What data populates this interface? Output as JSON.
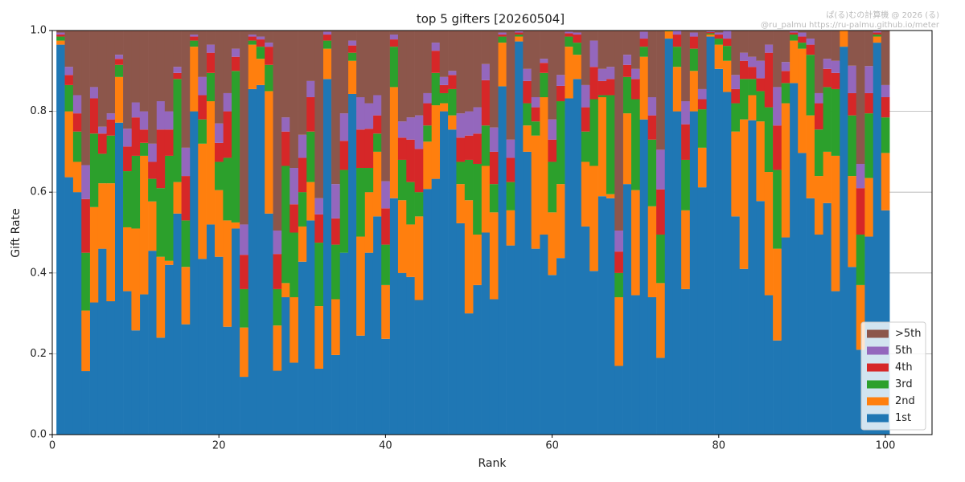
{
  "chart_data": {
    "type": "stacked_bar",
    "title": "top 5 gifters [20260504]",
    "watermark": [
      "ぱ(る)むの計算機 @ 2026 (る)",
      "@ru_palmu  https://ru-palmu.github.io/meter"
    ],
    "xlabel": "Rank",
    "ylabel": "Gift Rate",
    "x": [
      1,
      2,
      3,
      4,
      5,
      6,
      7,
      8,
      9,
      10,
      11,
      12,
      13,
      14,
      15,
      16,
      17,
      18,
      19,
      20,
      21,
      22,
      23,
      24,
      25,
      26,
      27,
      28,
      29,
      30,
      31,
      32,
      33,
      34,
      35,
      36,
      37,
      38,
      39,
      40,
      41,
      42,
      43,
      44,
      45,
      46,
      47,
      48,
      49,
      50,
      51,
      52,
      53,
      54,
      55,
      56,
      57,
      58,
      59,
      60,
      61,
      62,
      63,
      64,
      65,
      66,
      67,
      68,
      69,
      70,
      71,
      72,
      73,
      74,
      75,
      76,
      77,
      78,
      79,
      80,
      81,
      82,
      83,
      84,
      85,
      86,
      87,
      88,
      89,
      90,
      91,
      92,
      93,
      94,
      95,
      96,
      97,
      98,
      99,
      100
    ],
    "series": [
      {
        "name": "1st",
        "color": "#1f77b4",
        "values": [
          0.965,
          0.637,
          0.6,
          0.157,
          0.327,
          0.46,
          0.33,
          0.772,
          0.355,
          0.258,
          0.347,
          0.455,
          0.24,
          0.42,
          0.547,
          0.273,
          0.8,
          0.435,
          0.52,
          0.44,
          0.267,
          0.51,
          0.143,
          0.855,
          0.865,
          0.547,
          0.158,
          0.34,
          0.178,
          0.428,
          0.53,
          0.163,
          0.88,
          0.197,
          0.45,
          0.843,
          0.245,
          0.45,
          0.54,
          0.237,
          0.585,
          0.4,
          0.39,
          0.333,
          0.608,
          0.633,
          0.8,
          0.755,
          0.523,
          0.3,
          0.37,
          0.5,
          0.335,
          0.862,
          0.468,
          0.973,
          0.7,
          0.46,
          0.495,
          0.395,
          0.437,
          0.832,
          0.88,
          0.515,
          0.405,
          0.59,
          0.585,
          0.17,
          0.62,
          0.345,
          0.78,
          0.34,
          0.19,
          0.98,
          0.8,
          0.36,
          0.8,
          0.612,
          0.985,
          0.905,
          0.848,
          0.54,
          0.41,
          0.778,
          0.578,
          0.345,
          0.233,
          0.488,
          0.87,
          0.697,
          0.585,
          0.495,
          0.573,
          0.355,
          0.96,
          0.415,
          0.21,
          0.49,
          0.97,
          0.555
        ]
      },
      {
        "name": "2nd",
        "color": "#ff7f0e",
        "values": [
          0.01,
          0.163,
          0.075,
          0.15,
          0.236,
          0.162,
          0.292,
          0.113,
          0.158,
          0.252,
          0.343,
          0.122,
          0.2,
          0.01,
          0.078,
          0.142,
          0.16,
          0.285,
          0.305,
          0.165,
          0.263,
          0.015,
          0.122,
          0.11,
          0.065,
          0.303,
          0.112,
          0.035,
          0.162,
          0.087,
          0.095,
          0.155,
          0.075,
          0.138,
          0,
          0.082,
          0.245,
          0.15,
          0.16,
          0.133,
          0.275,
          0.18,
          0.13,
          0.207,
          0.117,
          0.182,
          0.02,
          0.035,
          0.097,
          0.28,
          0.125,
          0.165,
          0.215,
          0.108,
          0.087,
          0.012,
          0.065,
          0.28,
          0.34,
          0.155,
          0.183,
          0.128,
          0.06,
          0.16,
          0.26,
          0.245,
          0.01,
          0.17,
          0.175,
          0.26,
          0.155,
          0.225,
          0.185,
          0.018,
          0.11,
          0.195,
          0.1,
          0.098,
          0.005,
          0.06,
          0.077,
          0.21,
          0.37,
          0.062,
          0.197,
          0.305,
          0.227,
          0.332,
          0.105,
          0.258,
          0.205,
          0.145,
          0.127,
          0.335,
          0.04,
          0.225,
          0.16,
          0.145,
          0.015,
          0.142
        ]
      },
      {
        "name": "3rd",
        "color": "#2ca02c",
        "values": [
          0.01,
          0.065,
          0.075,
          0.143,
          0.182,
          0.073,
          0.118,
          0.03,
          0.139,
          0.18,
          0.032,
          0.056,
          0.17,
          0.26,
          0.255,
          0.115,
          0.015,
          0.06,
          0.07,
          0.07,
          0.155,
          0.375,
          0.095,
          0.01,
          0.03,
          0.065,
          0.09,
          0.29,
          0.16,
          0.085,
          0.125,
          0.157,
          0.02,
          0.135,
          0.205,
          0.02,
          0.17,
          0.06,
          0.045,
          0.1,
          0.1,
          0.1,
          0.105,
          0.06,
          0.04,
          0.08,
          0.025,
          0.065,
          0.055,
          0.1,
          0.175,
          0.1,
          0.07,
          0.015,
          0.07,
          0.005,
          0.055,
          0.035,
          0.06,
          0.125,
          0.205,
          0.025,
          0.03,
          0.075,
          0.165,
          0.005,
          0.245,
          0.06,
          0.09,
          0.225,
          0.025,
          0.165,
          0.12,
          0.001,
          0.05,
          0.125,
          0.055,
          0.095,
          0.003,
          0.015,
          0.037,
          0.07,
          0.1,
          0.04,
          0.075,
          0.16,
          0.195,
          0.05,
          0.015,
          0.015,
          0.15,
          0.115,
          0.16,
          0.165,
          0,
          0.15,
          0.125,
          0.16,
          0.005,
          0.088
        ]
      },
      {
        "name": "4th",
        "color": "#d62728",
        "values": [
          0.005,
          0.025,
          0.045,
          0.133,
          0.087,
          0.05,
          0.04,
          0.015,
          0.061,
          0.095,
          0.033,
          0.042,
          0.145,
          0.065,
          0.015,
          0.11,
          0.01,
          0.06,
          0.05,
          0.047,
          0.115,
          0.035,
          0.085,
          0.01,
          0.018,
          0.045,
          0.087,
          0.085,
          0.07,
          0.085,
          0.085,
          0.07,
          0.015,
          0.065,
          0.072,
          0.018,
          0.095,
          0.097,
          0.045,
          0.09,
          0.018,
          0.055,
          0.105,
          0.107,
          0.055,
          0.055,
          0.02,
          0.035,
          0.06,
          0.06,
          0.075,
          0.112,
          0.08,
          0.005,
          0.06,
          0.005,
          0.055,
          0.035,
          0.025,
          0.055,
          0.038,
          0.008,
          0.02,
          0.06,
          0.08,
          0.035,
          0.04,
          0.053,
          0.03,
          0.05,
          0.02,
          0.06,
          0.112,
          0.001,
          0.03,
          0.088,
          0.03,
          0.025,
          0.003,
          0.01,
          0.018,
          0.035,
          0.045,
          0.03,
          0.032,
          0.135,
          0.11,
          0.03,
          0.005,
          0.015,
          0.025,
          0.065,
          0.045,
          0.04,
          0,
          0.055,
          0.115,
          0.05,
          0.005,
          0.05
        ]
      },
      {
        "name": "5th",
        "color": "#9467bd",
        "values": [
          0.005,
          0.02,
          0.045,
          0.084,
          0.028,
          0.017,
          0.015,
          0.01,
          0.044,
          0.037,
          0.045,
          0.045,
          0.07,
          0.045,
          0.015,
          0.07,
          0.005,
          0.045,
          0.02,
          0.048,
          0.045,
          0.02,
          0.075,
          0.005,
          0.007,
          0.01,
          0.058,
          0.035,
          0.09,
          0.057,
          0.04,
          0.04,
          0.007,
          0.085,
          0.068,
          0.012,
          0.08,
          0.063,
          0.05,
          0.067,
          0.012,
          0.04,
          0.055,
          0.083,
          0.025,
          0.02,
          0.02,
          0.01,
          0.06,
          0.06,
          0.065,
          0.04,
          0.06,
          0.005,
          0.045,
          0.003,
          0.03,
          0.025,
          0.01,
          0.05,
          0.027,
          0.004,
          0.005,
          0.055,
          0.065,
          0.03,
          0.03,
          0.052,
          0.025,
          0.025,
          0.017,
          0.045,
          0.098,
          0,
          0.01,
          0.057,
          0.01,
          0.025,
          0.002,
          0.005,
          0.02,
          0.035,
          0.02,
          0.025,
          0.043,
          0.02,
          0.095,
          0.022,
          0.003,
          0.01,
          0.015,
          0.025,
          0.025,
          0.03,
          0,
          0.068,
          0.06,
          0.067,
          0.003,
          0.03
        ]
      },
      {
        "name": ">5th",
        "color": "#8c564b",
        "values": [
          0.005,
          0.09,
          0.16,
          0.333,
          0.14,
          0.238,
          0.205,
          0.06,
          0.243,
          0.178,
          0.2,
          0.28,
          0.175,
          0.2,
          0.09,
          0.29,
          0.01,
          0.115,
          0.035,
          0.23,
          0.155,
          0.045,
          0.48,
          0.01,
          0.015,
          0.03,
          0.495,
          0.215,
          0.34,
          0.258,
          0.125,
          0.415,
          0.003,
          0.38,
          0.205,
          0.025,
          0.165,
          0.18,
          0.16,
          0.373,
          0.01,
          0.225,
          0.215,
          0.21,
          0.155,
          0.03,
          0.115,
          0.1,
          0.205,
          0.2,
          0.19,
          0.083,
          0.24,
          0.005,
          0.27,
          0.002,
          0.095,
          0.165,
          0.07,
          0.22,
          0.11,
          0.003,
          0.005,
          0.135,
          0.025,
          0.095,
          0.09,
          0.495,
          0.06,
          0.095,
          0.003,
          0.165,
          0.295,
          0,
          0,
          0.175,
          0.005,
          0.145,
          0.002,
          0.005,
          0,
          0.11,
          0.055,
          0.065,
          0.075,
          0.035,
          0.14,
          0.078,
          0.002,
          0.005,
          0.02,
          0.155,
          0.07,
          0.075,
          0,
          0.087,
          0.33,
          0.088,
          0.002,
          0.135
        ]
      }
    ],
    "xlim": [
      0,
      105.6
    ],
    "xticks": [
      0,
      20,
      40,
      60,
      80,
      100
    ],
    "ylim": [
      0,
      1
    ],
    "yticks": [
      {
        "value": 0,
        "label": "0.0"
      },
      0.2,
      0.4,
      0.6,
      0.8,
      {
        "value": 1,
        "label": "1.0"
      }
    ],
    "grid": true,
    "legend": "lower right"
  }
}
